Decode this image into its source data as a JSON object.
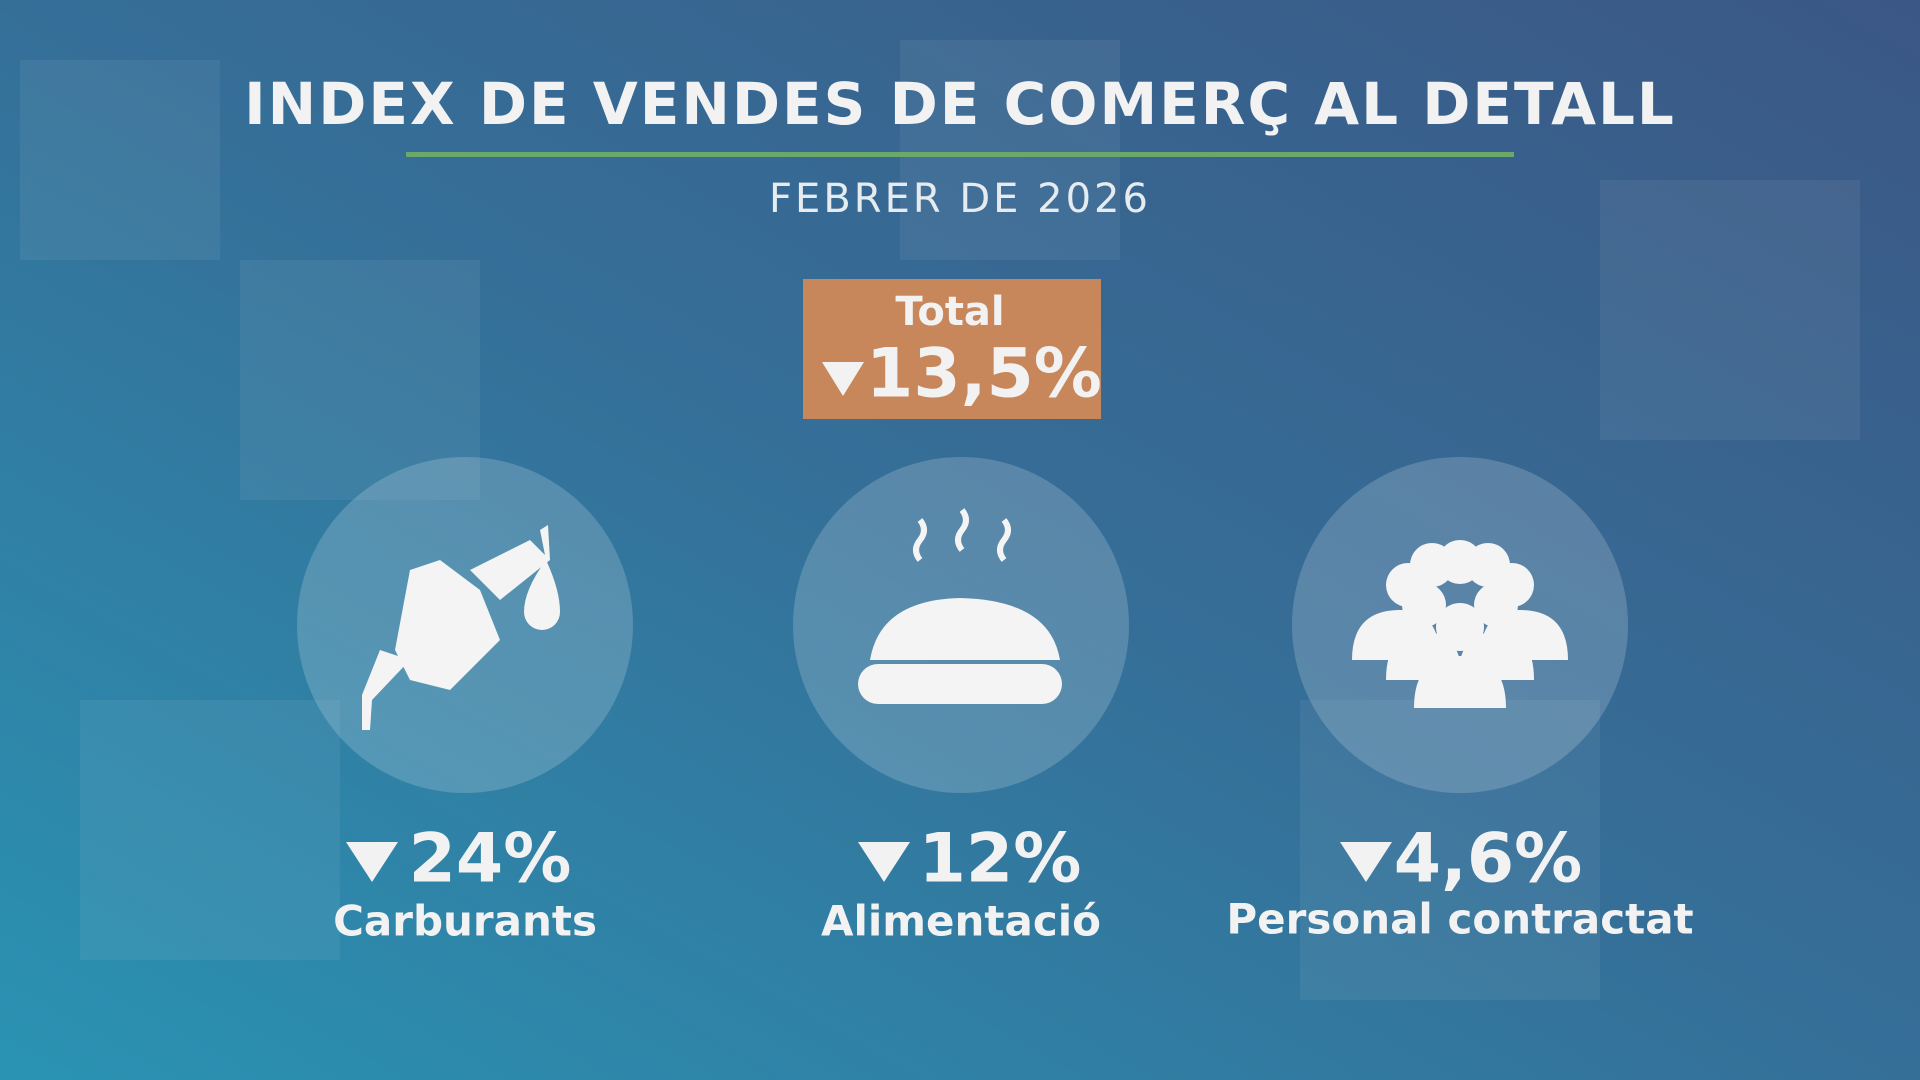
{
  "header": {
    "title": "INDEX DE VENDES DE COMERÇ AL DETALL",
    "subtitle": "FEBRER DE 2026"
  },
  "total": {
    "label": "Total",
    "value": "13,5%"
  },
  "items": [
    {
      "value": "24%",
      "label": "Carburants"
    },
    {
      "value": "12%",
      "label": "Alimentació"
    },
    {
      "value": "4,6%",
      "label": "Personal contractat"
    }
  ]
}
